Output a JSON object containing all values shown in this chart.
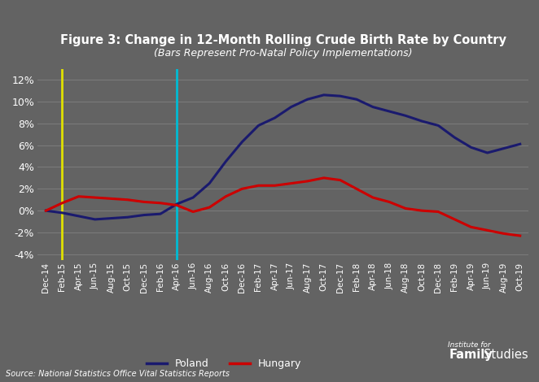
{
  "title": "Figure 3: Change in 12-Month Rolling Crude Birth Rate by Country",
  "subtitle": "(Bars Represent Pro-Natal Policy Implementations)",
  "source": "Source: National Statistics Office Vital Statistics Reports",
  "background_color": "#636363",
  "grid_color": "#7a7a7a",
  "text_color": "#ffffff",
  "yellow_vline_color": "#e0e000",
  "cyan_vline_color": "#00bcd4",
  "legend_entries": [
    "Poland",
    "Hungary"
  ],
  "poland_color": "#1a1a6e",
  "hungary_color": "#cc0000",
  "labels": [
    "Dec-14",
    "Feb-15",
    "Apr-15",
    "Jun-15",
    "Aug-15",
    "Oct-15",
    "Dec-15",
    "Feb-16",
    "Apr-16",
    "Jun-16",
    "Aug-16",
    "Oct-16",
    "Dec-16",
    "Feb-17",
    "Apr-17",
    "Jun-17",
    "Aug-17",
    "Oct-17",
    "Dec-17",
    "Feb-18",
    "Apr-18",
    "Jun-18",
    "Aug-18",
    "Oct-18",
    "Dec-18",
    "Feb-19",
    "Apr-19",
    "Jun-19",
    "Aug-19",
    "Oct-19"
  ],
  "yellow_vline_label": "Feb-15",
  "cyan_vline_label": "Apr-16",
  "poland_values": [
    0.0,
    -0.2,
    -0.5,
    -0.8,
    -0.7,
    -0.6,
    -0.4,
    -0.3,
    0.6,
    1.2,
    2.5,
    4.5,
    6.3,
    7.8,
    8.5,
    9.5,
    10.2,
    10.6,
    10.5,
    10.2,
    9.5,
    9.1,
    8.7,
    8.2,
    7.8,
    6.7,
    5.8,
    5.3,
    5.7,
    6.1
  ],
  "hungary_values": [
    0.0,
    0.7,
    1.3,
    1.2,
    1.1,
    1.0,
    0.8,
    0.7,
    0.5,
    -0.1,
    0.3,
    1.3,
    2.0,
    2.3,
    2.3,
    2.5,
    2.7,
    3.0,
    2.8,
    2.0,
    1.2,
    0.8,
    0.2,
    0.0,
    -0.1,
    -0.8,
    -1.5,
    -1.8,
    -2.1,
    -2.3
  ],
  "ylim": [
    -4.5,
    13.0
  ],
  "yticks": [
    -4,
    -2,
    0,
    2,
    4,
    6,
    8,
    10,
    12
  ]
}
